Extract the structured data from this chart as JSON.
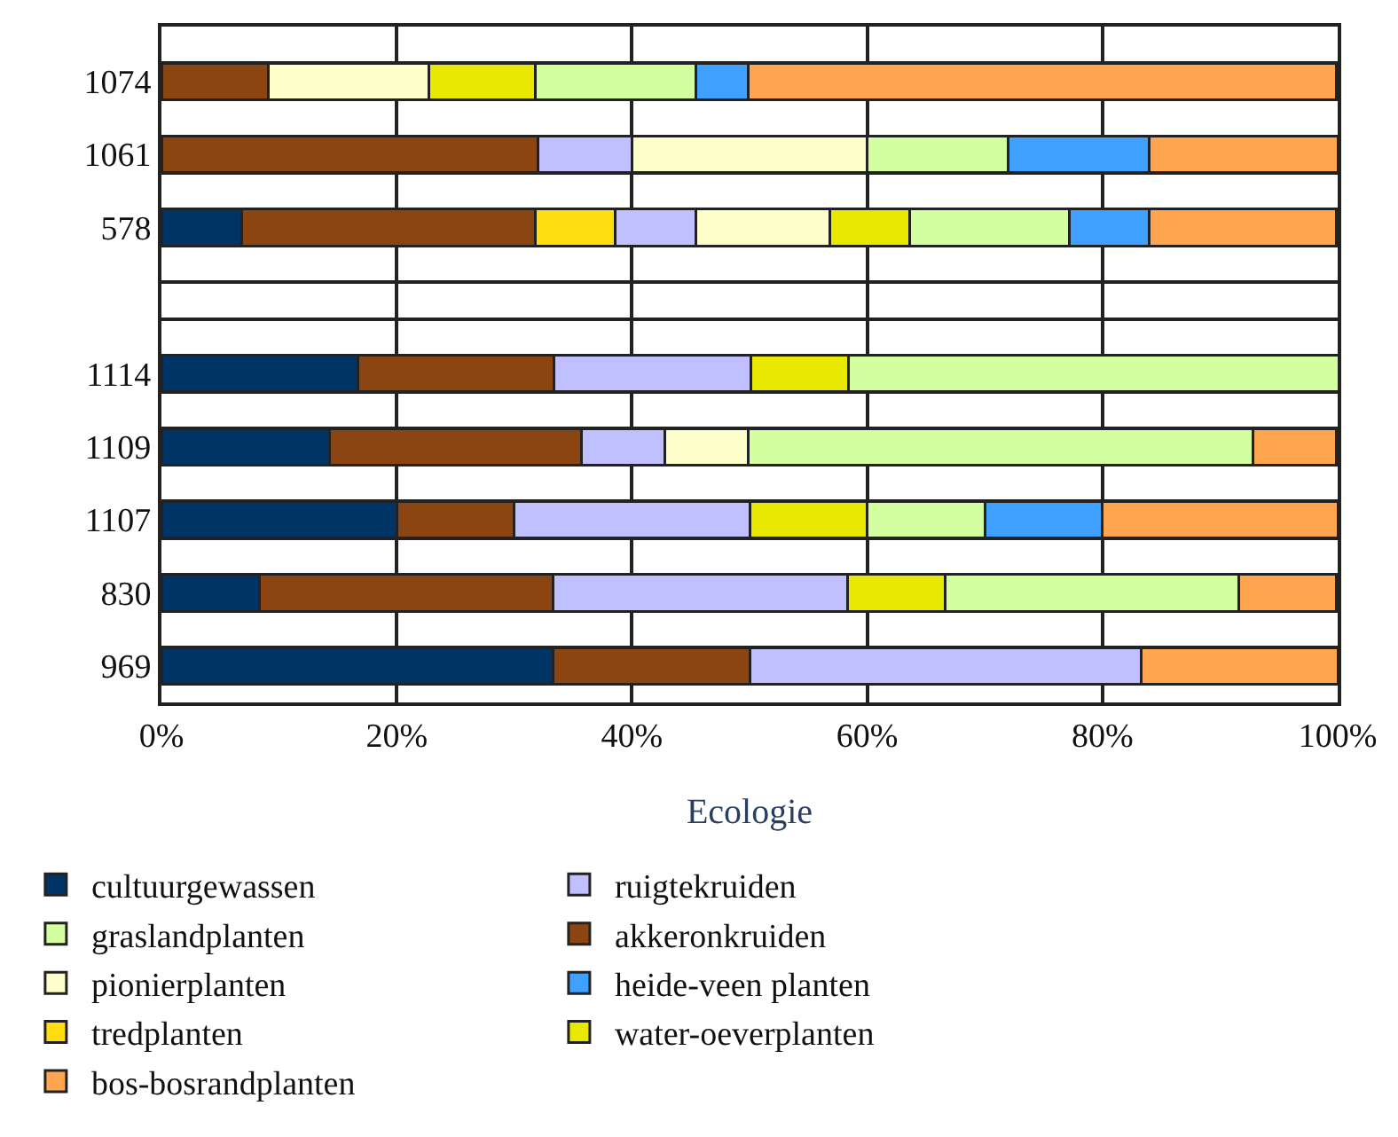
{
  "chart_data": {
    "type": "bar",
    "orientation": "horizontal",
    "stacked": true,
    "xlabel": "Ecologie",
    "categories": [
      "1074",
      "1061",
      "578",
      null,
      "1114",
      "1109",
      "1107",
      "830",
      "969"
    ],
    "xlim": [
      0,
      100
    ],
    "xticks": [
      {
        "value": 0,
        "label": "0%"
      },
      {
        "value": 20,
        "label": "20%"
      },
      {
        "value": 40,
        "label": "40%"
      },
      {
        "value": 60,
        "label": "60%"
      },
      {
        "value": 80,
        "label": "80%"
      },
      {
        "value": 100,
        "label": "100%"
      }
    ],
    "grid": true,
    "legend": "bottom",
    "series": [
      {
        "name": "cultuurgewassen",
        "color": "#003366",
        "values": [
          null,
          null,
          6.8,
          null,
          16.7,
          14.3,
          20,
          8.3,
          33.3
        ]
      },
      {
        "name": "akkeronkruiden",
        "color": "#8b4513",
        "values": [
          9.1,
          32,
          25,
          null,
          16.7,
          21.4,
          10,
          25,
          16.7
        ]
      },
      {
        "name": "tredplanten",
        "color": "#ffdd11",
        "values": [
          null,
          null,
          6.8,
          null,
          null,
          null,
          null,
          null,
          null
        ]
      },
      {
        "name": "ruigtekruiden",
        "color": "#c0c0ff",
        "values": [
          null,
          8,
          6.8,
          null,
          16.7,
          7.1,
          20,
          25,
          33.3
        ]
      },
      {
        "name": "pionierplanten",
        "color": "#ffffcc",
        "values": [
          13.6,
          20,
          11.4,
          null,
          null,
          7.1,
          null,
          null,
          null
        ]
      },
      {
        "name": "water-oeverplanten",
        "color": "#e8e800",
        "values": [
          9.1,
          null,
          6.8,
          null,
          8.3,
          null,
          10,
          8.3,
          null
        ]
      },
      {
        "name": "graslandplanten",
        "color": "#d4ffa0",
        "values": [
          13.6,
          12,
          13.6,
          null,
          41.7,
          42.9,
          10,
          25,
          null
        ]
      },
      {
        "name": "heide-veen planten",
        "color": "#40a0ff",
        "values": [
          4.5,
          12,
          6.8,
          null,
          null,
          null,
          10,
          null,
          null
        ]
      },
      {
        "name": "bos-bosrandplanten",
        "color": "#ffa550",
        "values": [
          50,
          16,
          15.9,
          null,
          null,
          7.1,
          20,
          8.3,
          16.7
        ]
      }
    ]
  }
}
